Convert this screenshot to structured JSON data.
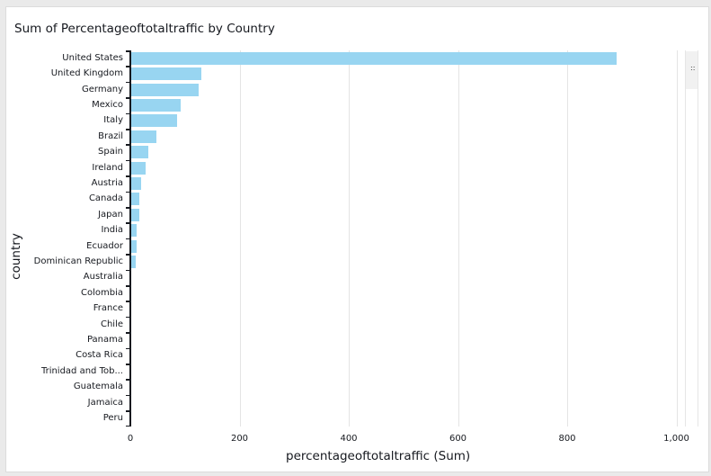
{
  "title": "Sum of Percentageoftotaltraffic by Country",
  "axes": {
    "x_label": "percentageoftotaltraffic (Sum)",
    "y_label": "country"
  },
  "x_ticks": [
    "0",
    "200",
    "400",
    "600",
    "800",
    "1,000"
  ],
  "scrollbar": {
    "grip_icon": "::"
  },
  "colors": {
    "bar": "#98d5f1",
    "axis": "#16191f",
    "grid": "#e4e4e4"
  },
  "chart_data": {
    "type": "bar",
    "orientation": "horizontal",
    "title": "Sum of Percentageoftotaltraffic by Country",
    "xlabel": "percentageoftotaltraffic (Sum)",
    "ylabel": "country",
    "xlim": [
      0,
      1000
    ],
    "x_ticks": [
      0,
      200,
      400,
      600,
      800,
      1000
    ],
    "grid": true,
    "legend": "none",
    "categories": [
      "United States",
      "United Kingdom",
      "Germany",
      "Mexico",
      "Italy",
      "Brazil",
      "Spain",
      "Ireland",
      "Austria",
      "Canada",
      "Japan",
      "India",
      "Ecuador",
      "Dominican Republic",
      "Australia",
      "Colombia",
      "France",
      "Chile",
      "Panama",
      "Costa Rica",
      "Trinidad and Tob...",
      "Guatemala",
      "Jamaica",
      "Peru"
    ],
    "values": [
      890,
      130,
      125,
      92,
      86,
      48,
      33,
      28,
      20,
      16,
      16,
      12,
      12,
      10,
      2,
      1,
      1,
      1,
      1,
      1,
      1,
      1,
      1,
      1
    ]
  }
}
